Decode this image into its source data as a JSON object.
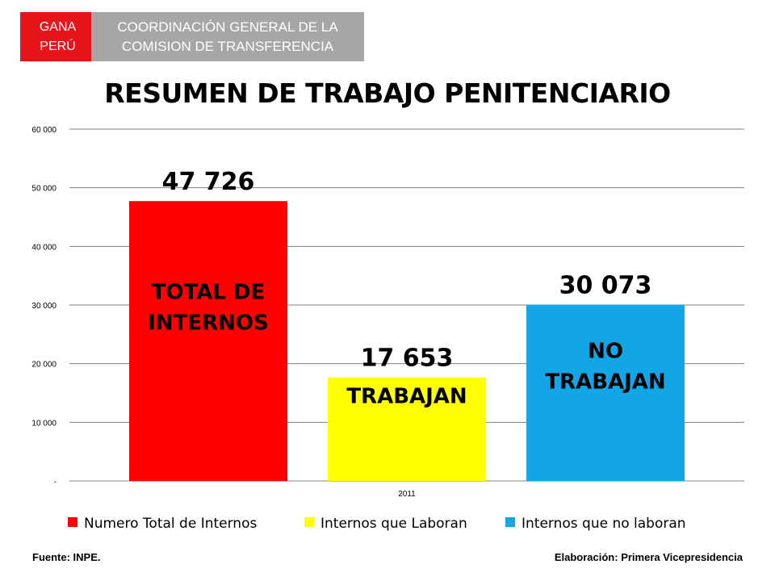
{
  "header": {
    "left_line1": "GANA",
    "left_line2": "PERÚ",
    "right_line1": "COORDINACIÓN GENERAL DE LA",
    "right_line2": "COMISION DE TRANSFERENCIA"
  },
  "title": "RESUMEN DE TRABAJO PENITENCIARIO",
  "chart_data": {
    "type": "bar",
    "title": "RESUMEN DE TRABAJO PENITENCIARIO",
    "categories": [
      "2011"
    ],
    "ylim": [
      0,
      60000
    ],
    "yticks": [
      0,
      10000,
      20000,
      30000,
      40000,
      50000,
      60000
    ],
    "ytick_labels": [
      "-",
      "10 000",
      "20 000",
      "30 000",
      "40 000",
      "50 000",
      "60 000"
    ],
    "grid": true,
    "legend_position": "bottom",
    "series": [
      {
        "name": "Numero Total de Internos",
        "values": [
          47726
        ],
        "value_label": "47 726",
        "inner_label": [
          "TOTAL DE",
          "INTERNOS"
        ],
        "color": "#ff0000"
      },
      {
        "name": "Internos que Laboran",
        "values": [
          17653
        ],
        "value_label": "17 653",
        "inner_label": [
          "TRABAJAN"
        ],
        "color": "#ffff00"
      },
      {
        "name": "Internos que no laboran",
        "values": [
          30073
        ],
        "value_label": "30 073",
        "inner_label": [
          "NO",
          "TRABAJAN"
        ],
        "color": "#13a6e7"
      }
    ]
  },
  "footer": {
    "source": "Fuente: INPE.",
    "credit": "Elaboración: Primera Vicepresidencia"
  }
}
